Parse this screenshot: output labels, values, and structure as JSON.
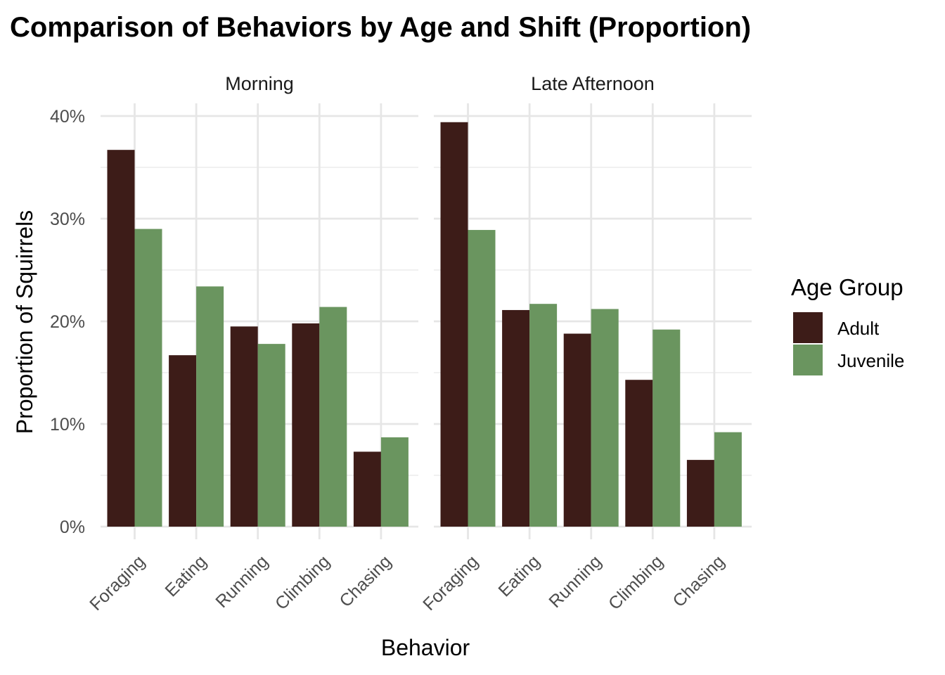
{
  "chart_data": {
    "type": "bar",
    "title": "Comparison of Behaviors by Age and Shift (Proportion)",
    "xlabel": "Behavior",
    "ylabel": "Proportion of Squirrels",
    "ylim": [
      0,
      0.4
    ],
    "y_ticks": [
      "0%",
      "10%",
      "20%",
      "30%",
      "40%"
    ],
    "y_tick_values": [
      0,
      0.1,
      0.2,
      0.3,
      0.4
    ],
    "categories": [
      "Foraging",
      "Eating",
      "Running",
      "Climbing",
      "Chasing"
    ],
    "legend": {
      "title": "Age Group",
      "position": "right"
    },
    "grid": true,
    "colors": {
      "Adult": "#3d1c18",
      "Juvenile": "#6a955f"
    },
    "panels": [
      {
        "name": "Morning",
        "series": [
          {
            "name": "Adult",
            "values": [
              0.367,
              0.167,
              0.195,
              0.198,
              0.073
            ]
          },
          {
            "name": "Juvenile",
            "values": [
              0.29,
              0.234,
              0.178,
              0.214,
              0.087
            ]
          }
        ]
      },
      {
        "name": "Late Afternoon",
        "series": [
          {
            "name": "Adult",
            "values": [
              0.394,
              0.211,
              0.188,
              0.143,
              0.065
            ]
          },
          {
            "name": "Juvenile",
            "values": [
              0.289,
              0.217,
              0.212,
              0.192,
              0.092
            ]
          }
        ]
      }
    ]
  }
}
